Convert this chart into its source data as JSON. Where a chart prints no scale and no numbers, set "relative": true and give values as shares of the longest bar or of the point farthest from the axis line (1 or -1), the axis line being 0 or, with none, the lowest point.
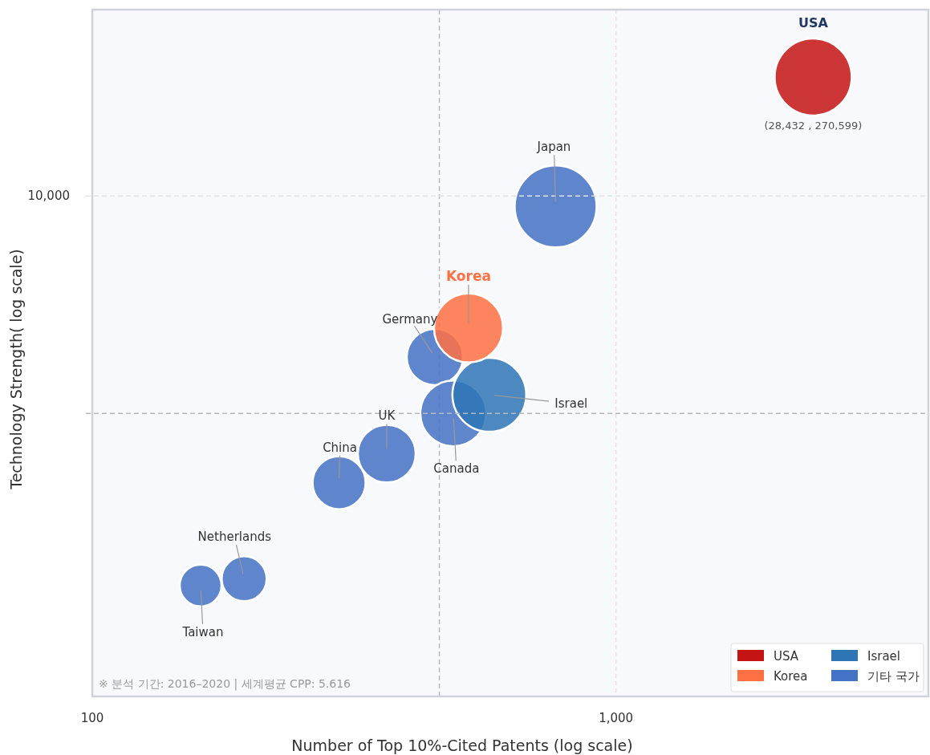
{
  "chart_data": {
    "type": "bubble",
    "xlabel": "Number of Top 10%-Cited Patents (log scale)",
    "ylabel": "Technology Strength( log scale)",
    "log": "x",
    "relative": true,
    "xlim": [
      100,
      3950
    ],
    "xticks": [
      100,
      {
        "value": 1000,
        "label": "1,000"
      }
    ],
    "grid": "x",
    "legend": "bottom right",
    "series": [
      {
        "name": "USA",
        "color": "#c41414",
        "x": [
          2380
        ],
        "values": [
          1.0
        ],
        "sizes": [
          0.886
        ]
      },
      {
        "name": "Korea",
        "color": "#ff7043",
        "x": [
          523
        ],
        "values": [
          0.595
        ],
        "sizes": [
          0.711
        ]
      },
      {
        "name": "Israel",
        "color": "#2e75b6",
        "x": [
          573
        ],
        "values": [
          0.487
        ],
        "sizes": [
          0.813
        ]
      },
      {
        "name": "기타 국가",
        "color": "#4472c4",
        "x": [
          767,
          451,
          489,
          365,
          296,
          195,
          161
        ],
        "values": [
          0.791,
          0.548,
          0.457,
          0.392,
          0.345,
          0.19,
          0.179
        ],
        "sizes": [
          1,
          0.471,
          0.646,
          0.498,
          0.419,
          0.301,
          0.26
        ]
      }
    ],
    "ref_lines": [
      {
        "axis": "x",
        "value": 460,
        "color": "#b4b8c0",
        "line_style": "dashed"
      },
      {
        "axis": "y",
        "value": 0.457,
        "color": "#b4b8c0",
        "line_style": "dashed"
      },
      {
        "axis": "y",
        "value": 0.808,
        "color": "#dfe3ea",
        "line_style": "dashed"
      }
    ],
    "annotations": [
      "USA",
      "(28,432 , 270,599)",
      {
        "text": "Japan",
        "x": 767,
        "y": 0.791
      },
      {
        "text": "Korea",
        "x": 523,
        "y": 0.595
      },
      {
        "text": "Germany",
        "x": 451,
        "y": 0.548
      },
      {
        "text": "Israel",
        "x": 573,
        "y": 0.487
      },
      {
        "text": "Canada",
        "x": 489,
        "y": 0.457
      },
      {
        "text": "UK",
        "x": 365,
        "y": 0.392
      },
      {
        "text": "China",
        "x": 296,
        "y": 0.345
      },
      {
        "text": "Netherlands",
        "x": 195,
        "y": 0.19
      },
      {
        "text": "Taiwan",
        "x": 161,
        "y": 0.179
      },
      "※ 분석 기간: 2016–2020  |  세계평균 CPP: 5.616",
      "10,000"
    ]
  }
}
